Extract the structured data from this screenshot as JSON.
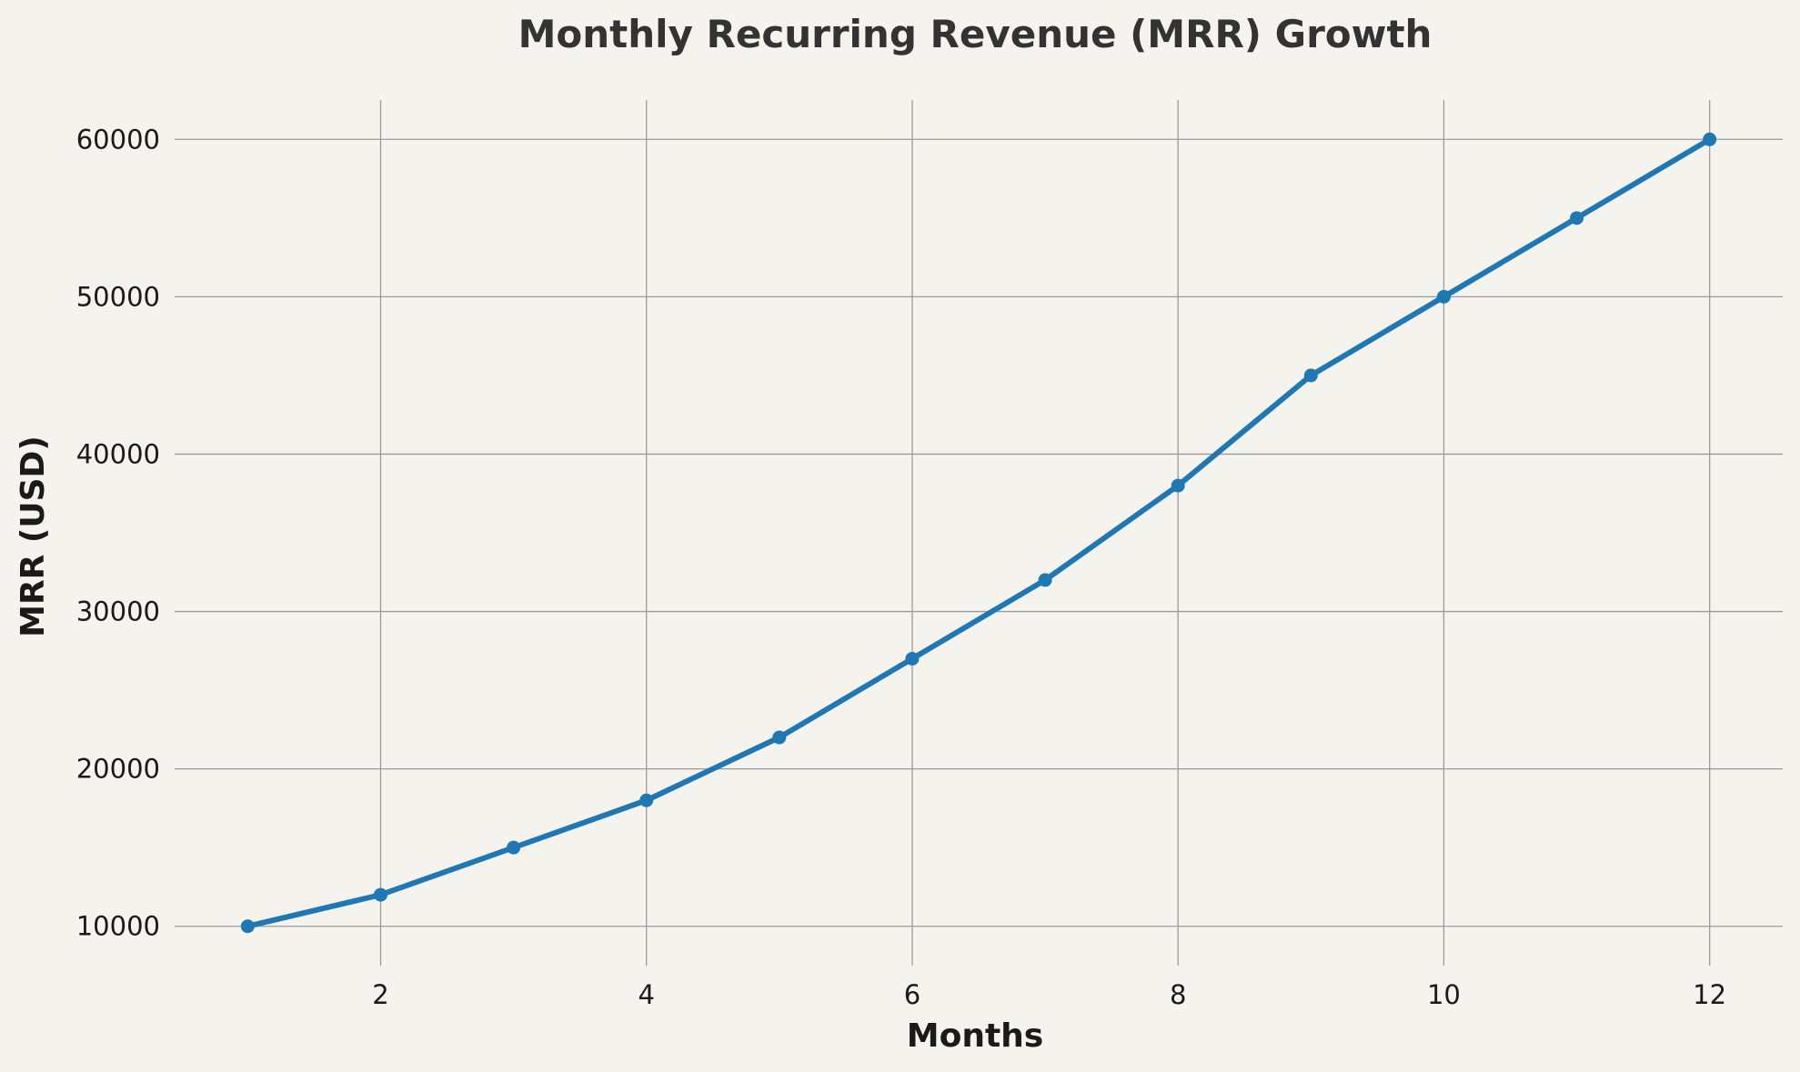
{
  "chart_data": {
    "type": "line",
    "title": "Monthly Recurring Revenue (MRR) Growth",
    "xlabel": "Months",
    "ylabel": "MRR (USD)",
    "x": [
      1,
      2,
      3,
      4,
      5,
      6,
      7,
      8,
      9,
      10,
      11,
      12
    ],
    "series": [
      {
        "values": [
          10000,
          12000,
          15000,
          18000,
          22000,
          27000,
          32000,
          38000,
          45000,
          50000,
          55000,
          60000
        ]
      }
    ],
    "xlim": [
      0.45,
      12.55
    ],
    "ylim": [
      7500,
      62500
    ],
    "xticks": [
      2,
      4,
      6,
      8,
      10,
      12
    ],
    "yticks": [
      10000,
      20000,
      30000,
      40000,
      50000,
      60000
    ],
    "grid": true,
    "line_color": "#1f77b4",
    "background_color": "#f5f3ee"
  }
}
